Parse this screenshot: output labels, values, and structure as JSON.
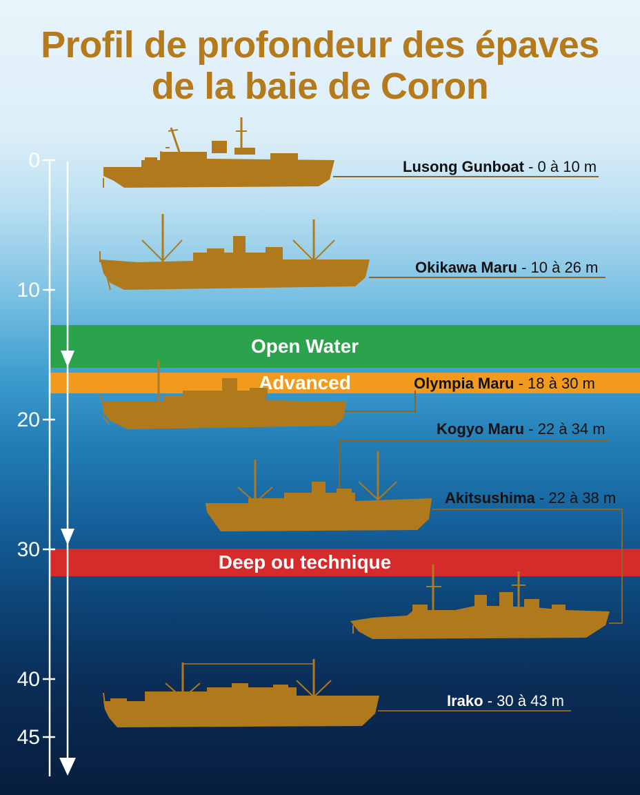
{
  "title": {
    "line1": "Profil de profondeur des épaves",
    "line2": "de la baie de Coron"
  },
  "colors": {
    "ship": "#b07a1c",
    "title": "#b57a1c",
    "open_water": "#2ba24c",
    "advanced": "#f29a1e",
    "deep": "#d62b2b"
  },
  "depth_scale": {
    "ticks": [
      "0",
      "10",
      "20",
      "30",
      "40",
      "45"
    ]
  },
  "zones": {
    "open_water": "Open Water",
    "advanced": "Advanced",
    "deep": "Deep ou technique"
  },
  "wrecks": [
    {
      "name": "Lusong Gunboat",
      "range": "- 0 à 10 m"
    },
    {
      "name": "Okikawa Maru",
      "range": "- 10 à 26 m"
    },
    {
      "name": "Olympia Maru",
      "range": "- 18 à 30 m"
    },
    {
      "name": "Kogyo Maru",
      "range": "- 22 à 34 m"
    },
    {
      "name": "Akitsushima",
      "range": "- 22 à 38 m"
    },
    {
      "name": "Irako",
      "range": "- 30 à 43 m"
    }
  ]
}
